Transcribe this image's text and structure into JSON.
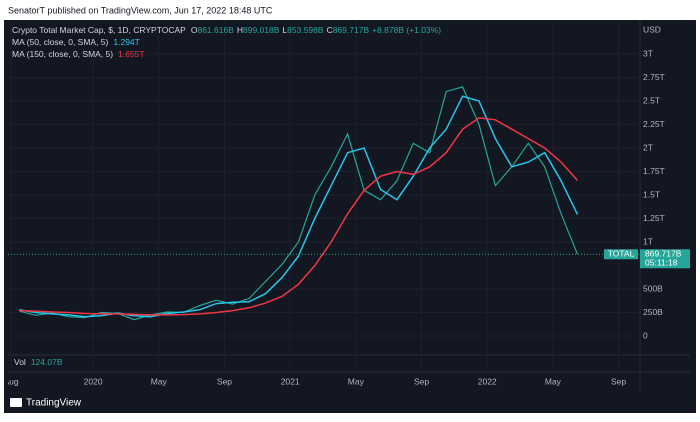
{
  "header": "SenatorT published on TradingView.com, Jun 17, 2022 18:48 UTC",
  "footer": "TradingView",
  "chart_data": {
    "type": "line",
    "title": "Crypto Total Market Cap, $, 1D, CRYPTOCAP",
    "ohlc": [
      {
        "label": "O",
        "value": "861.616B"
      },
      {
        "label": "H",
        "value": "899.018B"
      },
      {
        "label": "L",
        "value": "853.598B"
      },
      {
        "label": "C",
        "value": "869.717B"
      }
    ],
    "change": "+8.878B (+1.03%)",
    "y_unit": "USD",
    "x": [
      "2019-08",
      "2019-09",
      "2019-10",
      "2019-11",
      "2019-12",
      "2020-01",
      "2020-02",
      "2020-03",
      "2020-04",
      "2020-05",
      "2020-06",
      "2020-07",
      "2020-08",
      "2020-09",
      "2020-10",
      "2020-11",
      "2020-12",
      "2021-01",
      "2021-02",
      "2021-03",
      "2021-04",
      "2021-05",
      "2021-06",
      "2021-07",
      "2021-08",
      "2021-09",
      "2021-10",
      "2021-11",
      "2021-12",
      "2022-01",
      "2022-02",
      "2022-03",
      "2022-04",
      "2022-05",
      "2022-06"
    ],
    "series": [
      {
        "name": "TOTAL",
        "color": "#26a69a",
        "values": [
          265,
          220,
          245,
          205,
          195,
          250,
          240,
          175,
          225,
          255,
          250,
          325,
          380,
          340,
          400,
          580,
          760,
          1000,
          1500,
          1800,
          2150,
          1550,
          1450,
          1650,
          2050,
          1950,
          2600,
          2650,
          2250,
          1600,
          1800,
          2050,
          1800,
          1300,
          869.717
        ],
        "last_label": "869.717B",
        "countdown": "05:11:18"
      },
      {
        "name": "MA (50, close, 0, SMA, 5)",
        "color": "#26c6e8",
        "values": [
          280,
          250,
          235,
          225,
          205,
          215,
          245,
          215,
          205,
          240,
          255,
          280,
          345,
          360,
          365,
          450,
          620,
          850,
          1250,
          1600,
          1950,
          2000,
          1560,
          1450,
          1700,
          2000,
          2200,
          2550,
          2500,
          2100,
          1800,
          1850,
          1950,
          1650,
          1294
        ],
        "last_label": "1.294T"
      },
      {
        "name": "MA (150, close, 0, SMA, 5)",
        "color": "#f23645",
        "values": [
          270,
          265,
          255,
          250,
          240,
          235,
          235,
          230,
          225,
          225,
          228,
          235,
          250,
          270,
          300,
          350,
          420,
          550,
          750,
          1000,
          1300,
          1550,
          1700,
          1750,
          1720,
          1800,
          1950,
          2200,
          2320,
          2300,
          2200,
          2100,
          2000,
          1850,
          1655
        ],
        "last_label": "1.655T"
      }
    ],
    "ylim": [
      -202,
      3362
    ],
    "yticks": [
      0,
      {
        "value": 250,
        "label": "250B"
      },
      {
        "value": 500,
        "label": "500B"
      },
      {
        "value": 1000,
        "label": "1T"
      },
      {
        "value": 1250,
        "label": "1.25T"
      },
      {
        "value": 1500,
        "label": "1.5T"
      },
      {
        "value": 1750,
        "label": "1.75T"
      },
      {
        "value": 2000,
        "label": "2T"
      },
      {
        "value": 2250,
        "label": "2.25T"
      },
      {
        "value": 2500,
        "label": "2.5T"
      },
      {
        "value": 2750,
        "label": "2.75T"
      },
      {
        "value": 3000,
        "label": "3T"
      }
    ],
    "xlim": [
      "2019-08",
      "2022-10"
    ],
    "xticks": [
      {
        "value": "2019-08",
        "label": "Aug"
      },
      {
        "value": "2020-01",
        "label": "2020"
      },
      {
        "value": "2020-05",
        "label": "May"
      },
      {
        "value": "2020-09",
        "label": "Sep"
      },
      {
        "value": "2021-01",
        "label": "2021"
      },
      {
        "value": "2021-05",
        "label": "May"
      },
      {
        "value": "2021-09",
        "label": "Sep"
      },
      {
        "value": "2022-01",
        "label": "2022"
      },
      {
        "value": "2022-05",
        "label": "May"
      },
      {
        "value": "2022-09",
        "label": "Sep"
      }
    ],
    "volume": {
      "label": "Vol",
      "value": "124.07B"
    },
    "grid": true
  }
}
